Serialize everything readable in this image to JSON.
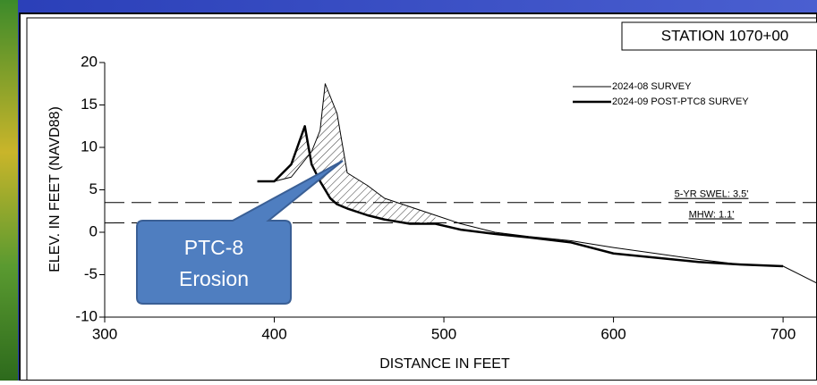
{
  "chart_data": {
    "type": "line",
    "station": "STATION 1070+00",
    "x_label": "DISTANCE IN FEET",
    "y_label": "ELEV. IN FEET (NAVD88)",
    "x": [
      390,
      400,
      410,
      418,
      422,
      427,
      430,
      433,
      437,
      443,
      455,
      465,
      480,
      495,
      510,
      530,
      550,
      575,
      600,
      625,
      650,
      675,
      700,
      720
    ],
    "series": [
      {
        "name": "2024-08 SURVEY",
        "color": "#000000",
        "width": 1,
        "values": [
          6,
          6,
          6.5,
          8.5,
          9.5,
          12,
          17.5,
          16,
          14,
          7,
          5.5,
          4,
          3,
          2,
          1,
          0,
          -0.5,
          -1,
          -1.8,
          -2.5,
          -3.2,
          -3.8,
          -4,
          -6
        ]
      },
      {
        "name": "2024-09 POST-PTC8 SURVEY",
        "color": "#000000",
        "width": 2.5,
        "values": [
          6,
          6,
          8,
          12.5,
          8,
          6,
          5,
          4,
          3.3,
          2.8,
          2,
          1.5,
          1,
          1,
          0.3,
          -0.2,
          -0.6,
          -1.2,
          -2.5,
          -3,
          -3.5,
          -3.8,
          -4,
          null
        ]
      }
    ],
    "reference_lines": [
      {
        "label": "5-YR SWEL: 3.5'",
        "value": 3.5
      },
      {
        "label": "MHW: 1.1'",
        "value": 1.1
      }
    ],
    "callout": [
      "PTC-8",
      "Erosion"
    ],
    "xlim": [
      300,
      720
    ],
    "ylim": [
      -10,
      20
    ],
    "xticks": [
      300,
      400,
      500,
      600,
      700
    ],
    "yticks": [
      -10,
      -5,
      0,
      5,
      10,
      15,
      20
    ],
    "legend": "upper right"
  }
}
